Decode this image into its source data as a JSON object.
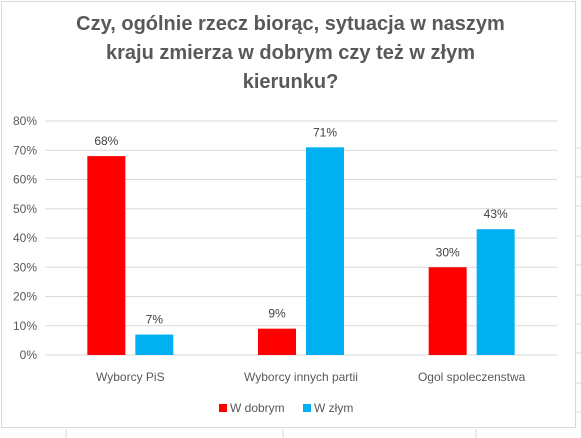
{
  "chart_data": {
    "type": "bar",
    "title_lines": [
      "Czy, ogólnie rzecz biorąc, sytuacja w naszym",
      "kraju zmierza w dobrym czy też w złym",
      "kierunku?"
    ],
    "categories": [
      "Wyborcy PiS",
      "Wyborcy innych partii",
      "Ogol spoleczenstwa"
    ],
    "series": [
      {
        "name": "W dobrym",
        "color": "#ff0000",
        "values": [
          68,
          9,
          30
        ],
        "labels": [
          "68%",
          "9%",
          "30%"
        ]
      },
      {
        "name": "W złym",
        "color": "#00b0f0",
        "values": [
          7,
          71,
          43
        ],
        "labels": [
          "7%",
          "71%",
          "43%"
        ]
      }
    ],
    "ylim": [
      0,
      80
    ],
    "yticks": [
      0,
      10,
      20,
      30,
      40,
      50,
      60,
      70,
      80
    ],
    "ytick_labels": [
      "0%",
      "10%",
      "20%",
      "30%",
      "40%",
      "50%",
      "60%",
      "70%",
      "80%"
    ],
    "grid": true,
    "legend_position": "bottom"
  }
}
